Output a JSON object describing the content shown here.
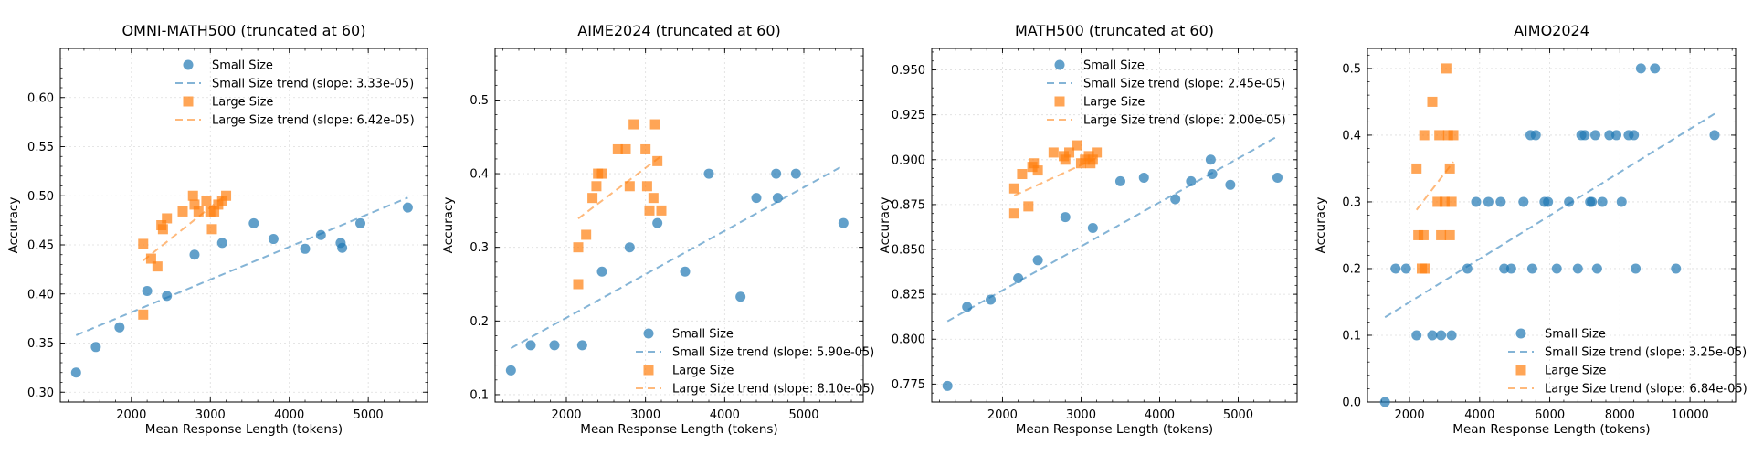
{
  "colors": {
    "small": "#1f77b4",
    "large": "#ff7f0e",
    "grid": "#dddddd"
  },
  "chart_data": [
    {
      "type": "scatter",
      "title": "OMNI-MATH500 (truncated at 60)",
      "xlabel": "Mean Response Length (tokens)",
      "ylabel": "Accuracy",
      "xlim": [
        1100,
        5750
      ],
      "ylim": [
        0.29,
        0.65
      ],
      "xticks": [
        2000,
        3000,
        4000,
        5000
      ],
      "yticks": [
        0.3,
        0.35,
        0.4,
        0.45,
        0.5,
        0.55,
        0.6
      ],
      "ytick_decimals": 2,
      "legend_position": "top",
      "legend": [
        "Small Size",
        "Small Size trend (slope: 3.33e-05)",
        "Large Size",
        "Large Size trend (slope: 6.42e-05)"
      ],
      "series": [
        {
          "name": "Small Size",
          "marker": "circle",
          "points": [
            [
              1300,
              0.32
            ],
            [
              1550,
              0.346
            ],
            [
              1850,
              0.366
            ],
            [
              2200,
              0.403
            ],
            [
              2450,
              0.398
            ],
            [
              2800,
              0.44
            ],
            [
              3150,
              0.452
            ],
            [
              3550,
              0.472
            ],
            [
              3800,
              0.456
            ],
            [
              4200,
              0.446
            ],
            [
              4400,
              0.46
            ],
            [
              4650,
              0.452
            ],
            [
              4670,
              0.447
            ],
            [
              4900,
              0.472
            ],
            [
              5500,
              0.488
            ]
          ],
          "trend": [
            [
              1300,
              0.358
            ],
            [
              5500,
              0.498
            ]
          ]
        },
        {
          "name": "Large Size",
          "marker": "square",
          "points": [
            [
              2150,
              0.451
            ],
            [
              2150,
              0.379
            ],
            [
              2250,
              0.436
            ],
            [
              2330,
              0.428
            ],
            [
              2380,
              0.47
            ],
            [
              2400,
              0.466
            ],
            [
              2450,
              0.477
            ],
            [
              2650,
              0.484
            ],
            [
              2780,
              0.5
            ],
            [
              2800,
              0.491
            ],
            [
              2850,
              0.484
            ],
            [
              2950,
              0.495
            ],
            [
              3000,
              0.484
            ],
            [
              3020,
              0.466
            ],
            [
              3050,
              0.484
            ],
            [
              3100,
              0.491
            ],
            [
              3150,
              0.495
            ],
            [
              3200,
              0.5
            ]
          ],
          "trend": [
            [
              2150,
              0.434
            ],
            [
              3200,
              0.501
            ]
          ]
        }
      ]
    },
    {
      "type": "scatter",
      "title": "AIME2024 (truncated at 60)",
      "xlabel": "Mean Response Length (tokens)",
      "ylabel": "Accuracy",
      "xlim": [
        1100,
        5750
      ],
      "ylim": [
        0.09,
        0.57
      ],
      "xticks": [
        2000,
        3000,
        4000,
        5000
      ],
      "yticks": [
        0.1,
        0.2,
        0.3,
        0.4,
        0.5
      ],
      "ytick_decimals": 1,
      "legend_position": "bottom-right",
      "legend": [
        "Small Size",
        "Small Size trend (slope: 5.90e-05)",
        "Large Size",
        "Large Size trend (slope: 8.10e-05)"
      ],
      "series": [
        {
          "name": "Small Size",
          "marker": "circle",
          "points": [
            [
              1300,
              0.133
            ],
            [
              1550,
              0.167
            ],
            [
              1850,
              0.167
            ],
            [
              2200,
              0.167
            ],
            [
              2450,
              0.267
            ],
            [
              2800,
              0.3
            ],
            [
              3150,
              0.333
            ],
            [
              3500,
              0.267
            ],
            [
              3800,
              0.4
            ],
            [
              4200,
              0.233
            ],
            [
              4400,
              0.367
            ],
            [
              4650,
              0.4
            ],
            [
              4670,
              0.367
            ],
            [
              4900,
              0.4
            ],
            [
              5500,
              0.333
            ]
          ],
          "trend": [
            [
              1300,
              0.163
            ],
            [
              5500,
              0.411
            ]
          ]
        },
        {
          "name": "Large Size",
          "marker": "square",
          "points": [
            [
              2150,
              0.25
            ],
            [
              2150,
              0.3
            ],
            [
              2250,
              0.317
            ],
            [
              2330,
              0.367
            ],
            [
              2380,
              0.383
            ],
            [
              2400,
              0.4
            ],
            [
              2450,
              0.4
            ],
            [
              2650,
              0.433
            ],
            [
              2750,
              0.433
            ],
            [
              2800,
              0.383
            ],
            [
              2850,
              0.467
            ],
            [
              3000,
              0.433
            ],
            [
              3020,
              0.383
            ],
            [
              3050,
              0.35
            ],
            [
              3100,
              0.367
            ],
            [
              3120,
              0.467
            ],
            [
              3150,
              0.417
            ],
            [
              3200,
              0.35
            ]
          ],
          "trend": [
            [
              2150,
              0.339
            ],
            [
              3200,
              0.424
            ]
          ]
        }
      ]
    },
    {
      "type": "scatter",
      "title": "MATH500 (truncated at 60)",
      "xlabel": "Mean Response Length (tokens)",
      "ylabel": "Accuracy",
      "xlim": [
        1100,
        5750
      ],
      "ylim": [
        0.765,
        0.962
      ],
      "xticks": [
        2000,
        3000,
        4000,
        5000
      ],
      "yticks": [
        0.775,
        0.8,
        0.825,
        0.85,
        0.875,
        0.9,
        0.925,
        0.95
      ],
      "ytick_decimals": 3,
      "legend_position": "top",
      "legend": [
        "Small Size",
        "Small Size trend (slope: 2.45e-05)",
        "Large Size",
        "Large Size trend (slope: 2.00e-05)"
      ],
      "series": [
        {
          "name": "Small Size",
          "marker": "circle",
          "points": [
            [
              1300,
              0.774
            ],
            [
              1550,
              0.818
            ],
            [
              1850,
              0.822
            ],
            [
              2200,
              0.834
            ],
            [
              2450,
              0.844
            ],
            [
              2800,
              0.868
            ],
            [
              3150,
              0.862
            ],
            [
              3500,
              0.888
            ],
            [
              3800,
              0.89
            ],
            [
              4200,
              0.878
            ],
            [
              4400,
              0.888
            ],
            [
              4650,
              0.9
            ],
            [
              4670,
              0.892
            ],
            [
              4900,
              0.886
            ],
            [
              5500,
              0.89
            ]
          ],
          "trend": [
            [
              1300,
              0.81
            ],
            [
              5500,
              0.913
            ]
          ]
        },
        {
          "name": "Large Size",
          "marker": "square",
          "points": [
            [
              2150,
              0.884
            ],
            [
              2150,
              0.87
            ],
            [
              2250,
              0.892
            ],
            [
              2330,
              0.874
            ],
            [
              2380,
              0.896
            ],
            [
              2400,
              0.898
            ],
            [
              2450,
              0.894
            ],
            [
              2650,
              0.904
            ],
            [
              2780,
              0.902
            ],
            [
              2800,
              0.9
            ],
            [
              2850,
              0.904
            ],
            [
              2950,
              0.908
            ],
            [
              3000,
              0.898
            ],
            [
              3050,
              0.9
            ],
            [
              3100,
              0.902
            ],
            [
              3120,
              0.898
            ],
            [
              3150,
              0.9
            ],
            [
              3200,
              0.904
            ]
          ],
          "trend": [
            [
              2150,
              0.88
            ],
            [
              3200,
              0.901
            ]
          ]
        }
      ]
    },
    {
      "type": "scatter",
      "title": "AIMO2024",
      "xlabel": "Mean Response Length (tokens)",
      "ylabel": "Accuracy",
      "xlim": [
        800,
        11300
      ],
      "ylim": [
        0.0,
        0.53
      ],
      "xticks": [
        2000,
        4000,
        6000,
        8000,
        10000
      ],
      "yticks": [
        0.0,
        0.1,
        0.2,
        0.3,
        0.4,
        0.5
      ],
      "ytick_decimals": 1,
      "legend_position": "bottom-right",
      "legend": [
        "Small Size",
        "Small Size trend (slope: 3.25e-05)",
        "Large Size",
        "Large Size trend (slope: 6.84e-05)"
      ],
      "series": [
        {
          "name": "Small Size",
          "marker": "circle",
          "points": [
            [
              1300,
              0.0
            ],
            [
              1600,
              0.2
            ],
            [
              1900,
              0.2
            ],
            [
              2200,
              0.1
            ],
            [
              2650,
              0.1
            ],
            [
              2900,
              0.1
            ],
            [
              3200,
              0.1
            ],
            [
              3650,
              0.2
            ],
            [
              3900,
              0.3
            ],
            [
              4250,
              0.3
            ],
            [
              4600,
              0.3
            ],
            [
              4700,
              0.2
            ],
            [
              4900,
              0.2
            ],
            [
              5250,
              0.3
            ],
            [
              5450,
              0.4
            ],
            [
              5500,
              0.2
            ],
            [
              5600,
              0.4
            ],
            [
              5850,
              0.3
            ],
            [
              5950,
              0.3
            ],
            [
              6200,
              0.2
            ],
            [
              6550,
              0.3
            ],
            [
              6800,
              0.2
            ],
            [
              6900,
              0.4
            ],
            [
              7000,
              0.4
            ],
            [
              7150,
              0.3
            ],
            [
              7200,
              0.3
            ],
            [
              7300,
              0.4
            ],
            [
              7350,
              0.2
            ],
            [
              7500,
              0.3
            ],
            [
              7700,
              0.4
            ],
            [
              7900,
              0.4
            ],
            [
              8050,
              0.3
            ],
            [
              8250,
              0.4
            ],
            [
              8400,
              0.4
            ],
            [
              8450,
              0.2
            ],
            [
              8600,
              0.5
            ],
            [
              9000,
              0.5
            ],
            [
              9600,
              0.2
            ],
            [
              10700,
              0.4
            ]
          ],
          "trend": [
            [
              1300,
              0.127
            ],
            [
              10700,
              0.432
            ]
          ]
        },
        {
          "name": "Large Size",
          "marker": "square",
          "points": [
            [
              2200,
              0.35
            ],
            [
              2250,
              0.25
            ],
            [
              2350,
              0.2
            ],
            [
              2400,
              0.25
            ],
            [
              2420,
              0.4
            ],
            [
              2450,
              0.2
            ],
            [
              2650,
              0.45
            ],
            [
              2800,
              0.3
            ],
            [
              2850,
              0.4
            ],
            [
              2900,
              0.25
            ],
            [
              3000,
              0.3
            ],
            [
              3050,
              0.5
            ],
            [
              3100,
              0.4
            ],
            [
              3150,
              0.25
            ],
            [
              3150,
              0.35
            ],
            [
              3200,
              0.3
            ],
            [
              3250,
              0.4
            ]
          ],
          "trend": [
            [
              2200,
              0.288
            ],
            [
              3250,
              0.36
            ]
          ]
        }
      ]
    }
  ]
}
